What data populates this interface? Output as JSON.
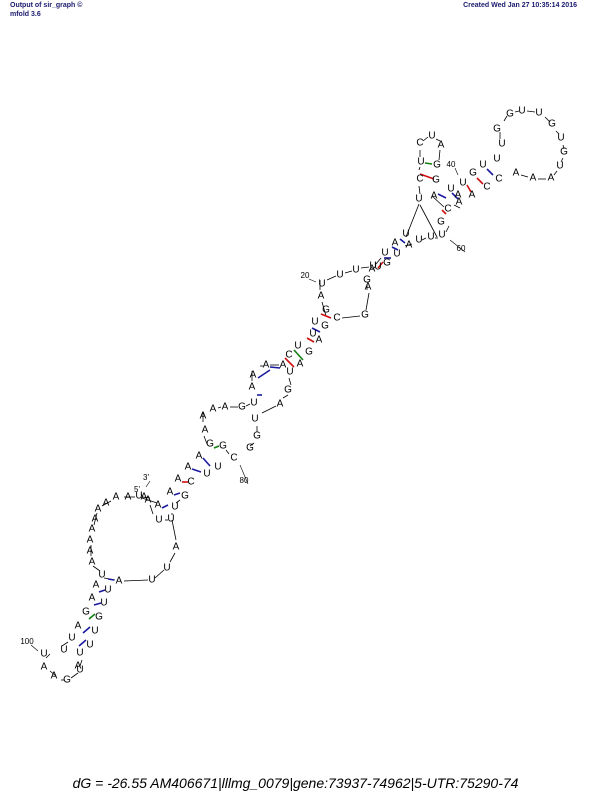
{
  "header": {
    "left_line1": "Output of sir_graph ©",
    "left_line2": "mfold 3.6",
    "right": "Created Wed Jan 27 10:35:14 2016"
  },
  "footer": {
    "text": "dG =  -26.55 AM406671|lllmg_0079|gene:73937-74962|5-UTR:75290-74"
  },
  "labels": {
    "five_prime": "5'",
    "three_prime": "3'",
    "n20": "20",
    "n40": "40",
    "n60": "60",
    "n80": "80",
    "n100": "100"
  },
  "colors": {
    "AU": "#1a1aa0",
    "GC": "#d01010",
    "GU": "#108010",
    "backbone": "#000000"
  }
}
